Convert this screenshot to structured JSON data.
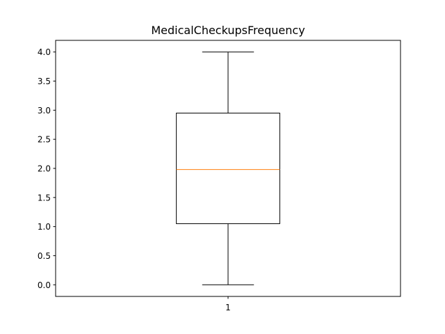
{
  "chart_data": {
    "type": "box",
    "title": "MedicalCheckupsFrequency",
    "xlabel": "",
    "ylabel": "",
    "categories": [
      "1"
    ],
    "boxes": [
      {
        "category": "1",
        "whisker_low": 0.0,
        "q1": 1.05,
        "median": 1.98,
        "q3": 2.95,
        "whisker_high": 4.0
      }
    ],
    "ylim": [
      -0.2,
      4.2
    ],
    "yticks": [
      0.0,
      0.5,
      1.0,
      1.5,
      2.0,
      2.5,
      3.0,
      3.5,
      4.0
    ],
    "ytick_labels": [
      "0.0",
      "0.5",
      "1.0",
      "1.5",
      "2.0",
      "2.5",
      "3.0",
      "3.5",
      "4.0"
    ],
    "grid": false,
    "colors": {
      "box": "#000000",
      "median": "#ff7f0e",
      "axes": "#000000"
    }
  }
}
